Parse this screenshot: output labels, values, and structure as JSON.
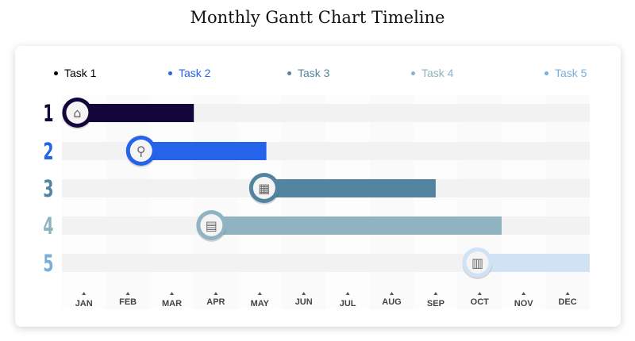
{
  "title": "Monthly Gantt Chart Timeline",
  "chart_data": {
    "type": "gantt",
    "title": "Monthly Gantt Chart Timeline",
    "months": [
      "JAN",
      "FEB",
      "MAR",
      "APR",
      "MAY",
      "JUN",
      "JUL",
      "AUG",
      "SEP",
      "OCT",
      "NOV",
      "DEC"
    ],
    "legend_position": "top",
    "tasks": [
      {
        "name": "Task 1",
        "row_label": "1",
        "start": 0.35,
        "end": 3.0,
        "color": "#14053a",
        "icon": "house-icon"
      },
      {
        "name": "Task 2",
        "row_label": "2",
        "start": 1.8,
        "end": 4.65,
        "color": "#2563eb",
        "icon": "magnifier-icon"
      },
      {
        "name": "Task 3",
        "row_label": "3",
        "start": 4.6,
        "end": 8.5,
        "color": "#52849f",
        "icon": "calculator-icon"
      },
      {
        "name": "Task 4",
        "row_label": "4",
        "start": 3.4,
        "end": 10.0,
        "color": "#8fb3c1",
        "icon": "calendar-icon"
      },
      {
        "name": "Task 5",
        "row_label": "5",
        "start": 9.45,
        "end": 12.0,
        "color": "#cfe3f5",
        "label_color": "#7aaed6",
        "icon": "bar-chart-icon"
      }
    ]
  }
}
